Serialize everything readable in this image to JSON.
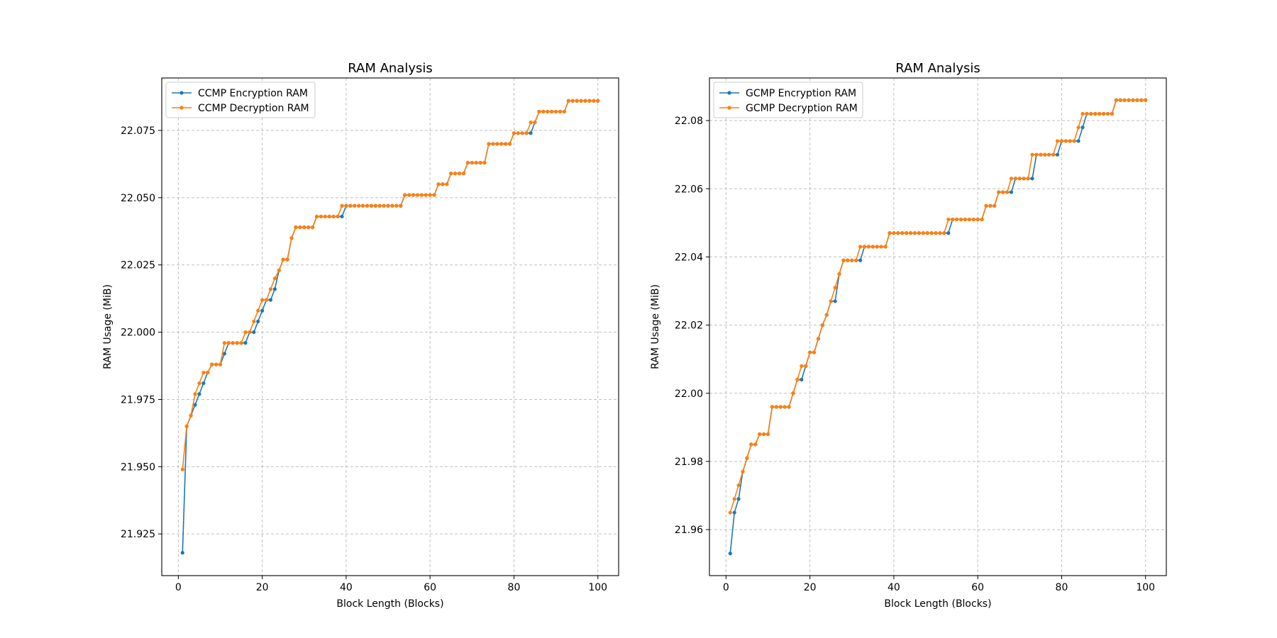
{
  "chart_data": [
    {
      "type": "line",
      "title": "RAM Analysis",
      "xlabel": "Block Length (Blocks)",
      "ylabel": "RAM Usage (MiB)",
      "xlim": [
        -3.95,
        104.95
      ],
      "ylim": [
        21.9095,
        22.0945
      ],
      "xticks": [
        0,
        20,
        40,
        60,
        80,
        100
      ],
      "xtick_labels": [
        "0",
        "20",
        "40",
        "60",
        "80",
        "100"
      ],
      "yticks": [
        21.925,
        21.95,
        21.975,
        22.0,
        22.025,
        22.05,
        22.075
      ],
      "ytick_labels": [
        "21.925",
        "21.950",
        "21.975",
        "22.000",
        "22.025",
        "22.050",
        "22.075"
      ],
      "grid": true,
      "legend_position": "top-left",
      "x": "1..100",
      "series": [
        {
          "name": "CCMP Encryption RAM",
          "color": "#1f77b4",
          "values": [
            21.918,
            21.965,
            21.969,
            21.973,
            21.977,
            21.981,
            21.985,
            21.988,
            21.988,
            21.988,
            21.992,
            21.996,
            21.996,
            21.996,
            21.996,
            21.996,
            22.0,
            22.0,
            22.004,
            22.008,
            22.012,
            22.012,
            22.016,
            22.023,
            22.027,
            22.027,
            22.035,
            22.039,
            22.039,
            22.039,
            22.039,
            22.039,
            22.043,
            22.043,
            22.043,
            22.043,
            22.043,
            22.043,
            22.043,
            22.047,
            22.047,
            22.047,
            22.047,
            22.047,
            22.047,
            22.047,
            22.047,
            22.047,
            22.047,
            22.047,
            22.047,
            22.047,
            22.047,
            22.051,
            22.051,
            22.051,
            22.051,
            22.051,
            22.051,
            22.051,
            22.051,
            22.055,
            22.055,
            22.055,
            22.059,
            22.059,
            22.059,
            22.059,
            22.063,
            22.063,
            22.063,
            22.063,
            22.063,
            22.07,
            22.07,
            22.07,
            22.07,
            22.07,
            22.07,
            22.074,
            22.074,
            22.074,
            22.074,
            22.074,
            22.078,
            22.082,
            22.082,
            22.082,
            22.082,
            22.082,
            22.082,
            22.082,
            22.086,
            22.086,
            22.086,
            22.086,
            22.086,
            22.086,
            22.086,
            22.086
          ]
        },
        {
          "name": "CCMP Decryption RAM",
          "color": "#ff7f0e",
          "values": [
            21.949,
            21.965,
            21.969,
            21.977,
            21.981,
            21.985,
            21.985,
            21.988,
            21.988,
            21.988,
            21.996,
            21.996,
            21.996,
            21.996,
            21.996,
            22.0,
            22.0,
            22.004,
            22.008,
            22.012,
            22.012,
            22.016,
            22.02,
            22.023,
            22.027,
            22.027,
            22.035,
            22.039,
            22.039,
            22.039,
            22.039,
            22.039,
            22.043,
            22.043,
            22.043,
            22.043,
            22.043,
            22.043,
            22.047,
            22.047,
            22.047,
            22.047,
            22.047,
            22.047,
            22.047,
            22.047,
            22.047,
            22.047,
            22.047,
            22.047,
            22.047,
            22.047,
            22.047,
            22.051,
            22.051,
            22.051,
            22.051,
            22.051,
            22.051,
            22.051,
            22.051,
            22.055,
            22.055,
            22.055,
            22.059,
            22.059,
            22.059,
            22.059,
            22.063,
            22.063,
            22.063,
            22.063,
            22.063,
            22.07,
            22.07,
            22.07,
            22.07,
            22.07,
            22.07,
            22.074,
            22.074,
            22.074,
            22.074,
            22.078,
            22.078,
            22.082,
            22.082,
            22.082,
            22.082,
            22.082,
            22.082,
            22.082,
            22.086,
            22.086,
            22.086,
            22.086,
            22.086,
            22.086,
            22.086,
            22.086
          ]
        }
      ]
    },
    {
      "type": "line",
      "title": "RAM Analysis",
      "xlabel": "Block Length (Blocks)",
      "ylabel": "RAM Usage (MiB)",
      "xlim": [
        -3.95,
        104.95
      ],
      "ylim": [
        21.9465,
        22.0925
      ],
      "xticks": [
        0,
        20,
        40,
        60,
        80,
        100
      ],
      "xtick_labels": [
        "0",
        "20",
        "40",
        "60",
        "80",
        "100"
      ],
      "yticks": [
        21.96,
        21.98,
        22.0,
        22.02,
        22.04,
        22.06,
        22.08
      ],
      "ytick_labels": [
        "21.96",
        "21.98",
        "22.00",
        "22.02",
        "22.04",
        "22.06",
        "22.08"
      ],
      "grid": true,
      "legend_position": "top-left",
      "x": "1..100",
      "series": [
        {
          "name": "GCMP Encryption RAM",
          "color": "#1f77b4",
          "values": [
            21.953,
            21.965,
            21.969,
            21.977,
            21.981,
            21.985,
            21.985,
            21.988,
            21.988,
            21.988,
            21.996,
            21.996,
            21.996,
            21.996,
            21.996,
            22.0,
            22.004,
            22.004,
            22.008,
            22.012,
            22.012,
            22.016,
            22.02,
            22.023,
            22.027,
            22.027,
            22.035,
            22.039,
            22.039,
            22.039,
            22.039,
            22.039,
            22.043,
            22.043,
            22.043,
            22.043,
            22.043,
            22.043,
            22.047,
            22.047,
            22.047,
            22.047,
            22.047,
            22.047,
            22.047,
            22.047,
            22.047,
            22.047,
            22.047,
            22.047,
            22.047,
            22.047,
            22.047,
            22.051,
            22.051,
            22.051,
            22.051,
            22.051,
            22.051,
            22.051,
            22.051,
            22.055,
            22.055,
            22.055,
            22.059,
            22.059,
            22.059,
            22.059,
            22.063,
            22.063,
            22.063,
            22.063,
            22.063,
            22.07,
            22.07,
            22.07,
            22.07,
            22.07,
            22.07,
            22.074,
            22.074,
            22.074,
            22.074,
            22.074,
            22.078,
            22.082,
            22.082,
            22.082,
            22.082,
            22.082,
            22.082,
            22.082,
            22.086,
            22.086,
            22.086,
            22.086,
            22.086,
            22.086,
            22.086,
            22.086
          ]
        },
        {
          "name": "GCMP Decryption RAM",
          "color": "#ff7f0e",
          "values": [
            21.965,
            21.969,
            21.973,
            21.977,
            21.981,
            21.985,
            21.985,
            21.988,
            21.988,
            21.988,
            21.996,
            21.996,
            21.996,
            21.996,
            21.996,
            22.0,
            22.004,
            22.008,
            22.008,
            22.012,
            22.012,
            22.016,
            22.02,
            22.023,
            22.027,
            22.031,
            22.035,
            22.039,
            22.039,
            22.039,
            22.039,
            22.043,
            22.043,
            22.043,
            22.043,
            22.043,
            22.043,
            22.043,
            22.047,
            22.047,
            22.047,
            22.047,
            22.047,
            22.047,
            22.047,
            22.047,
            22.047,
            22.047,
            22.047,
            22.047,
            22.047,
            22.047,
            22.051,
            22.051,
            22.051,
            22.051,
            22.051,
            22.051,
            22.051,
            22.051,
            22.051,
            22.055,
            22.055,
            22.055,
            22.059,
            22.059,
            22.059,
            22.063,
            22.063,
            22.063,
            22.063,
            22.063,
            22.07,
            22.07,
            22.07,
            22.07,
            22.07,
            22.07,
            22.074,
            22.074,
            22.074,
            22.074,
            22.074,
            22.078,
            22.082,
            22.082,
            22.082,
            22.082,
            22.082,
            22.082,
            22.082,
            22.082,
            22.086,
            22.086,
            22.086,
            22.086,
            22.086,
            22.086,
            22.086,
            22.086
          ]
        }
      ]
    }
  ]
}
